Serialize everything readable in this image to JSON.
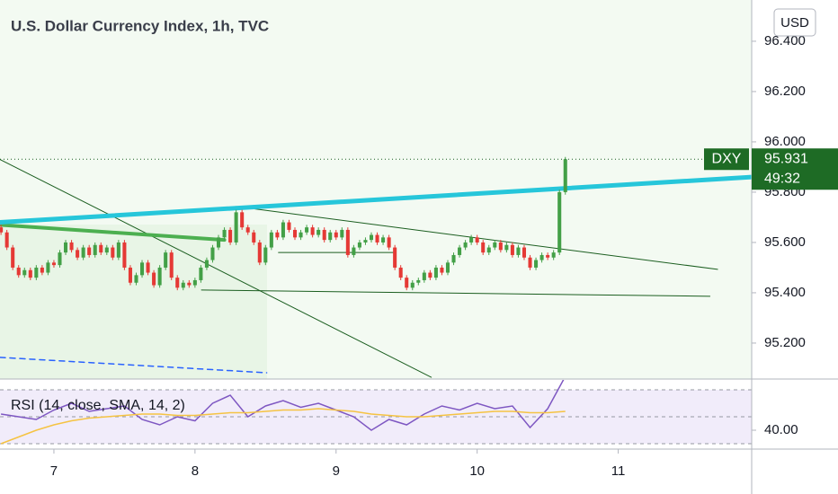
{
  "chart_data": {
    "type": "candlestick",
    "title": "U.S. Dollar Currency Index, 1h, TVC",
    "currency": "USD",
    "symbol": "DXY",
    "countdown": "49:32",
    "up_color": "#43a047",
    "down_color": "#e53935",
    "candles": [
      [
        95.66,
        95.67,
        95.63,
        95.64
      ],
      [
        95.64,
        95.65,
        95.57,
        95.58
      ],
      [
        95.58,
        95.59,
        95.49,
        95.5
      ],
      [
        95.5,
        95.51,
        95.46,
        95.47
      ],
      [
        95.47,
        95.5,
        95.46,
        95.49
      ],
      [
        95.49,
        95.5,
        95.45,
        95.46
      ],
      [
        95.46,
        95.51,
        95.45,
        95.5
      ],
      [
        95.5,
        95.51,
        95.47,
        95.48
      ],
      [
        95.48,
        95.53,
        95.47,
        95.52
      ],
      [
        95.52,
        95.53,
        95.5,
        95.51
      ],
      [
        95.51,
        95.57,
        95.5,
        95.56
      ],
      [
        95.56,
        95.61,
        95.55,
        95.6
      ],
      [
        95.6,
        95.61,
        95.56,
        95.57
      ],
      [
        95.57,
        95.58,
        95.53,
        95.54
      ],
      [
        95.54,
        95.59,
        95.53,
        95.58
      ],
      [
        95.58,
        95.59,
        95.54,
        95.55
      ],
      [
        95.55,
        95.6,
        95.54,
        95.59
      ],
      [
        95.59,
        95.6,
        95.55,
        95.56
      ],
      [
        95.56,
        95.59,
        95.55,
        95.58
      ],
      [
        95.58,
        95.59,
        95.53,
        95.54
      ],
      [
        95.54,
        95.61,
        95.53,
        95.6
      ],
      [
        95.6,
        95.61,
        95.49,
        95.5
      ],
      [
        95.5,
        95.51,
        95.43,
        95.44
      ],
      [
        95.44,
        95.48,
        95.43,
        95.47
      ],
      [
        95.47,
        95.53,
        95.46,
        95.52
      ],
      [
        95.52,
        95.53,
        95.47,
        95.48
      ],
      [
        95.48,
        95.49,
        95.42,
        95.43
      ],
      [
        95.43,
        95.51,
        95.42,
        95.5
      ],
      [
        95.5,
        95.57,
        95.49,
        95.56
      ],
      [
        95.56,
        95.57,
        95.45,
        95.46
      ],
      [
        95.46,
        95.47,
        95.41,
        95.42
      ],
      [
        95.42,
        95.45,
        95.41,
        95.44
      ],
      [
        95.44,
        95.45,
        95.42,
        95.43
      ],
      [
        95.43,
        95.46,
        95.42,
        95.45
      ],
      [
        95.45,
        95.51,
        95.44,
        95.5
      ],
      [
        95.5,
        95.54,
        95.49,
        95.53
      ],
      [
        95.53,
        95.59,
        95.52,
        95.58
      ],
      [
        95.58,
        95.63,
        95.57,
        95.62
      ],
      [
        95.62,
        95.66,
        95.61,
        95.65
      ],
      [
        95.65,
        95.66,
        95.59,
        95.6
      ],
      [
        95.6,
        95.73,
        95.59,
        95.72
      ],
      [
        95.72,
        95.73,
        95.65,
        95.66
      ],
      [
        95.66,
        95.67,
        95.63,
        95.64
      ],
      [
        95.64,
        95.65,
        95.59,
        95.6
      ],
      [
        95.6,
        95.61,
        95.51,
        95.52
      ],
      [
        95.52,
        95.59,
        95.51,
        95.58
      ],
      [
        95.58,
        95.65,
        95.57,
        95.64
      ],
      [
        95.64,
        95.65,
        95.61,
        95.62
      ],
      [
        95.62,
        95.69,
        95.61,
        95.68
      ],
      [
        95.68,
        95.69,
        95.64,
        95.65
      ],
      [
        95.65,
        95.66,
        95.61,
        95.62
      ],
      [
        95.62,
        95.65,
        95.61,
        95.64
      ],
      [
        95.64,
        95.67,
        95.63,
        95.66
      ],
      [
        95.66,
        95.67,
        95.62,
        95.63
      ],
      [
        95.63,
        95.66,
        95.62,
        95.65
      ],
      [
        95.65,
        95.66,
        95.6,
        95.61
      ],
      [
        95.61,
        95.65,
        95.6,
        95.64
      ],
      [
        95.64,
        95.65,
        95.61,
        95.62
      ],
      [
        95.62,
        95.66,
        95.61,
        95.65
      ],
      [
        95.65,
        95.66,
        95.54,
        95.55
      ],
      [
        95.55,
        95.59,
        95.54,
        95.58
      ],
      [
        95.58,
        95.61,
        95.57,
        95.6
      ],
      [
        95.6,
        95.62,
        95.59,
        95.61
      ],
      [
        95.61,
        95.64,
        95.6,
        95.63
      ],
      [
        95.63,
        95.64,
        95.59,
        95.6
      ],
      [
        95.6,
        95.63,
        95.59,
        95.62
      ],
      [
        95.62,
        95.63,
        95.57,
        95.58
      ],
      [
        95.58,
        95.59,
        95.49,
        95.5
      ],
      [
        95.5,
        95.51,
        95.45,
        95.46
      ],
      [
        95.46,
        95.47,
        95.41,
        95.42
      ],
      [
        95.42,
        95.45,
        95.41,
        95.44
      ],
      [
        95.44,
        95.46,
        95.43,
        95.45
      ],
      [
        95.45,
        95.49,
        95.44,
        95.48
      ],
      [
        95.48,
        95.49,
        95.45,
        95.46
      ],
      [
        95.46,
        95.51,
        95.45,
        95.5
      ],
      [
        95.5,
        95.51,
        95.47,
        95.48
      ],
      [
        95.48,
        95.53,
        95.47,
        95.52
      ],
      [
        95.52,
        95.56,
        95.51,
        95.55
      ],
      [
        95.55,
        95.59,
        95.54,
        95.58
      ],
      [
        95.58,
        95.61,
        95.57,
        95.6
      ],
      [
        95.6,
        95.63,
        95.59,
        95.62
      ],
      [
        95.62,
        95.63,
        95.59,
        95.6
      ],
      [
        95.6,
        95.61,
        95.55,
        95.56
      ],
      [
        95.56,
        95.59,
        95.55,
        95.58
      ],
      [
        95.58,
        95.61,
        95.57,
        95.6
      ],
      [
        95.6,
        95.61,
        95.56,
        95.57
      ],
      [
        95.57,
        95.6,
        95.56,
        95.59
      ],
      [
        95.59,
        95.6,
        95.54,
        95.55
      ],
      [
        95.55,
        95.59,
        95.54,
        95.58
      ],
      [
        95.58,
        95.59,
        95.53,
        95.54
      ],
      [
        95.54,
        95.55,
        95.49,
        95.5
      ],
      [
        95.5,
        95.54,
        95.49,
        95.53
      ],
      [
        95.53,
        95.56,
        95.52,
        95.55
      ],
      [
        95.55,
        95.56,
        95.53,
        95.54
      ],
      [
        95.54,
        95.57,
        95.53,
        95.56
      ],
      [
        95.56,
        95.81,
        95.55,
        95.8
      ],
      [
        95.8,
        95.94,
        95.79,
        95.931
      ]
    ],
    "xlim": [
      -0.17,
      127.7
    ],
    "xticks": [
      {
        "value": 9,
        "label": "7"
      },
      {
        "value": 33,
        "label": "8"
      },
      {
        "value": 57,
        "label": "9"
      },
      {
        "value": 81,
        "label": "10"
      },
      {
        "value": 105,
        "label": "11"
      }
    ],
    "ylim": [
      95.057,
      96.564
    ],
    "yticks": [
      {
        "value": 95.2,
        "label": "95.200"
      },
      {
        "value": 95.4,
        "label": "95.400"
      },
      {
        "value": 95.6,
        "label": "95.600"
      },
      {
        "value": 95.8,
        "label": "95.800"
      },
      {
        "value": 96.0,
        "label": "96.000"
      },
      {
        "value": 96.2,
        "label": "96.200"
      },
      {
        "value": 96.4,
        "label": "96.400"
      }
    ],
    "drawings": [
      {
        "color": "#1b5e20",
        "width": 1,
        "points": [
          [
            -0.17,
            95.93
          ],
          [
            73.2,
            95.064
          ]
        ]
      },
      {
        "color": "#2962ff",
        "width": 1.5,
        "dash": true,
        "points": [
          [
            -0.17,
            95.143
          ],
          [
            45.2,
            95.082
          ]
        ]
      },
      {
        "color": "#1b5e20",
        "width": 1,
        "points": [
          [
            40,
            95.743
          ],
          [
            121.9,
            95.493
          ]
        ]
      },
      {
        "color": "#1b5e20",
        "width": 1,
        "points": [
          [
            34.1,
            95.411
          ],
          [
            120.6,
            95.386
          ]
        ]
      },
      {
        "color": "#1b5e20",
        "width": 1,
        "points": [
          [
            47.2,
            95.56
          ],
          [
            67.1,
            95.56
          ]
        ]
      },
      {
        "color": "#4caf50",
        "width": 4,
        "points": [
          [
            -0.17,
            95.67
          ],
          [
            38,
            95.61
          ]
        ]
      },
      {
        "color": "#26c6da",
        "width": 5,
        "points": [
          [
            -0.17,
            95.68
          ],
          [
            127.7,
            95.86
          ]
        ]
      }
    ],
    "rsi": {
      "label": "RSI (14, close, SMA, 14, 2)",
      "ylim": [
        26,
        78
      ],
      "yticks": [
        {
          "value": 40,
          "label": "40.00"
        }
      ],
      "bands": [
        70,
        50,
        30
      ],
      "x": [
        0,
        3,
        6,
        9,
        12,
        15,
        18,
        21,
        24,
        27,
        30,
        33,
        36,
        39,
        42,
        45,
        48,
        51,
        54,
        57,
        60,
        63,
        66,
        69,
        72,
        75,
        78,
        81,
        84,
        87,
        90,
        93,
        96
      ],
      "series": [
        {
          "color": "#7e57c2",
          "values": [
            52,
            50,
            48,
            55,
            60,
            54,
            56,
            58,
            48,
            44,
            50,
            47,
            60,
            66,
            50,
            58,
            62,
            57,
            60,
            55,
            50,
            40,
            48,
            44,
            52,
            58,
            55,
            60,
            56,
            58,
            42,
            56,
            80
          ]
        },
        {
          "color": "#f5c342",
          "values": [
            30,
            35,
            40,
            44,
            47,
            49,
            50,
            51,
            52,
            52,
            51,
            51,
            52,
            53,
            53,
            54,
            55,
            55,
            56,
            55,
            54,
            52,
            51,
            50,
            50,
            51,
            52,
            53,
            54,
            54,
            53,
            53,
            54
          ]
        }
      ]
    }
  }
}
